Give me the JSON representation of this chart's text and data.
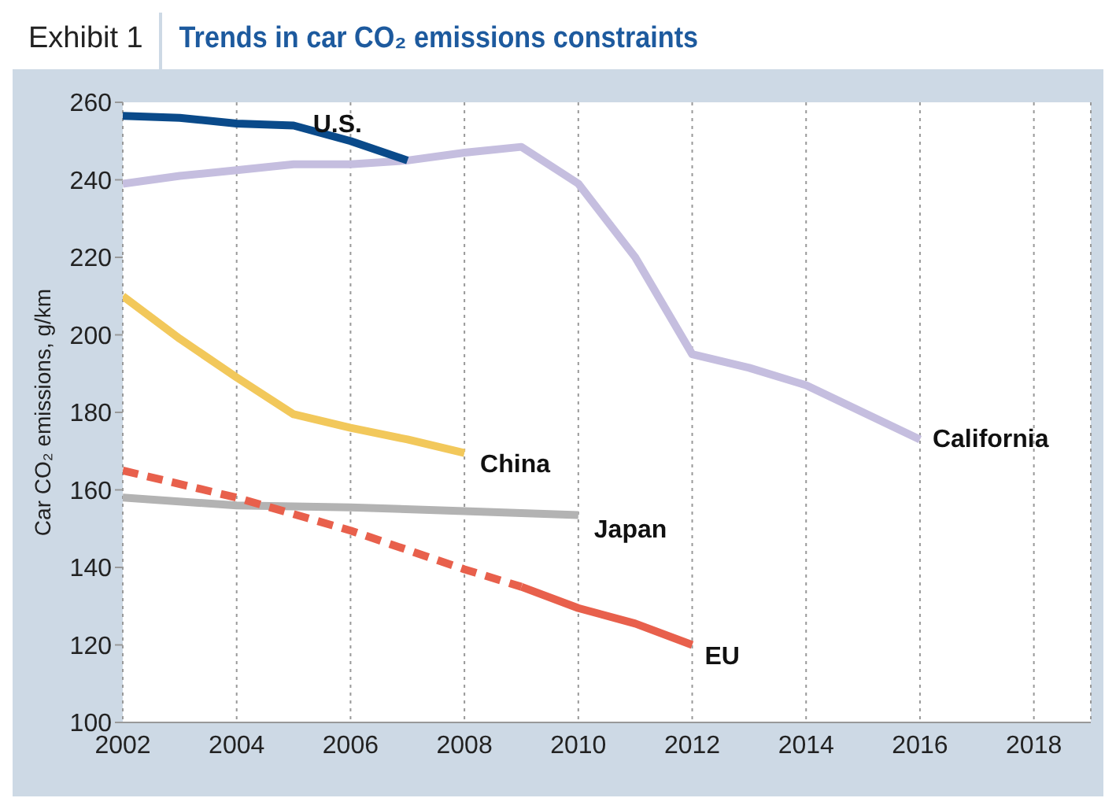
{
  "chart_data": {
    "type": "line",
    "title": "Trends in car CO₂ emissions constraints",
    "ylabel": "Car CO₂ emissions, g/km",
    "annotations": [
      "Exhibit 1"
    ],
    "xlim": [
      2002,
      2019
    ],
    "xticks": [
      2002,
      2004,
      2006,
      2008,
      2010,
      2012,
      2014,
      2016,
      2018
    ],
    "ylim": [
      100,
      260
    ],
    "yticks": [
      100,
      120,
      140,
      160,
      180,
      200,
      220,
      240,
      260
    ],
    "grid": "x",
    "marker": "none",
    "line_style": "solid",
    "series": [
      {
        "name": "California",
        "color": "#c5bedf",
        "x": [
          2002,
          2003,
          2004,
          2005,
          2006,
          2007,
          2008,
          2009,
          2010,
          2011,
          2012,
          2013,
          2014,
          2015,
          2016
        ],
        "values": [
          239,
          241,
          242.5,
          244,
          244,
          245,
          247,
          248.5,
          239,
          220,
          195,
          191.5,
          187,
          180,
          173
        ]
      },
      {
        "name": "U.S.",
        "color": "#0a4a8a",
        "x": [
          2002,
          2003,
          2004,
          2005,
          2006,
          2007
        ],
        "values": [
          256.5,
          256,
          254.5,
          254,
          250,
          245
        ]
      },
      {
        "name": "China",
        "color": "#f2c85b",
        "x": [
          2002,
          2003,
          2004,
          2005,
          2006,
          2007,
          2008
        ],
        "values": [
          210,
          199,
          189,
          179.5,
          176,
          173,
          169.5
        ]
      },
      {
        "name": "Japan",
        "color": "#b3b3b3",
        "x": [
          2002,
          2004,
          2006,
          2008,
          2010
        ],
        "values": [
          158,
          156,
          155.5,
          154.5,
          153.5
        ]
      },
      {
        "color": "#e8604c",
        "line_style": "dashed",
        "x": [
          2002,
          2004,
          2006,
          2008,
          2009
        ],
        "values": [
          165,
          158,
          149.5,
          139.5,
          135
        ]
      },
      {
        "name": "EU",
        "color": "#e8604c",
        "x": [
          2009,
          2010,
          2011,
          2012
        ],
        "values": [
          135,
          129.5,
          125.5,
          120
        ]
      }
    ]
  }
}
